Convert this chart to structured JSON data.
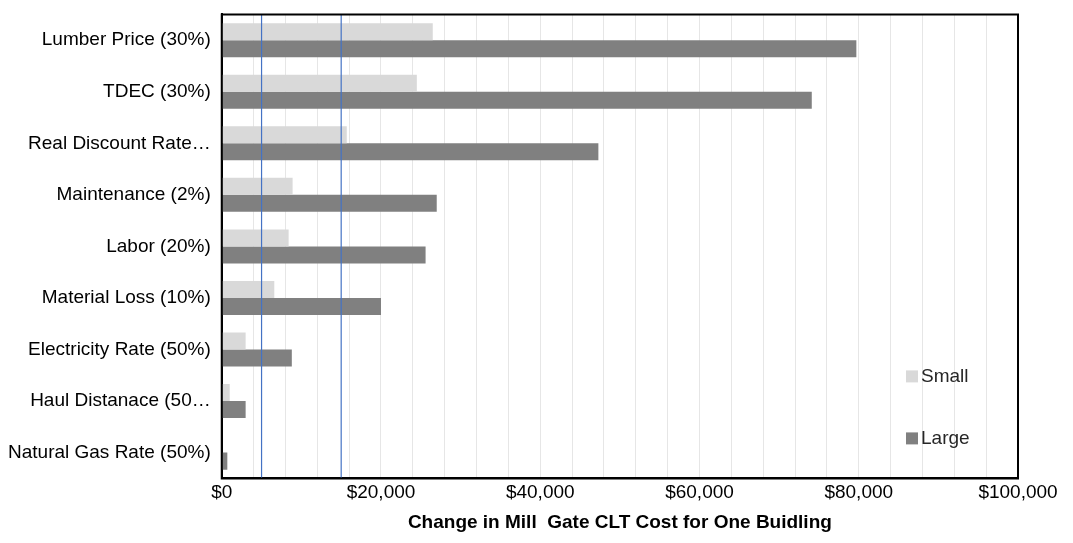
{
  "chart_data": {
    "type": "bar",
    "orientation": "horizontal",
    "xlabel": "Change in Mill  Gate CLT Cost for One Buidling",
    "categories": [
      "Lumber Price (30%)",
      "TDEC (30%)",
      "Real Discount Rate…",
      "Maintenance (2%)",
      "Labor (20%)",
      "Material Loss (10%)",
      "Electricity Rate (50%)",
      "Haul Distanace (50…",
      "Natural Gas Rate (50%)"
    ],
    "series": [
      {
        "name": "Small",
        "color": "#d9d9d9",
        "values": [
          26500,
          24500,
          15700,
          8900,
          8400,
          6600,
          3000,
          1000,
          0
        ]
      },
      {
        "name": "Large",
        "color": "#808080",
        "values": [
          79700,
          74100,
          47300,
          27000,
          25600,
          20000,
          8800,
          3000,
          700
        ]
      }
    ],
    "xlim": [
      0,
      100000
    ],
    "xticks": [
      {
        "value": 0,
        "label": "$0"
      },
      {
        "value": 4000,
        "label": null
      },
      {
        "value": 8000,
        "label": null
      },
      {
        "value": 12000,
        "label": null
      },
      {
        "value": 16000,
        "label": null
      },
      {
        "value": 20000,
        "label": "$20,000"
      },
      {
        "value": 24000,
        "label": null
      },
      {
        "value": 28000,
        "label": null
      },
      {
        "value": 32000,
        "label": null
      },
      {
        "value": 36000,
        "label": null
      },
      {
        "value": 40000,
        "label": "$40,000"
      },
      {
        "value": 44000,
        "label": null
      },
      {
        "value": 48000,
        "label": null
      },
      {
        "value": 52000,
        "label": null
      },
      {
        "value": 56000,
        "label": null
      },
      {
        "value": 60000,
        "label": "$60,000"
      },
      {
        "value": 64000,
        "label": null
      },
      {
        "value": 68000,
        "label": null
      },
      {
        "value": 72000,
        "label": null
      },
      {
        "value": 76000,
        "label": null
      },
      {
        "value": 80000,
        "label": "$80,000"
      },
      {
        "value": 84000,
        "label": null
      },
      {
        "value": 88000,
        "label": null
      },
      {
        "value": 92000,
        "label": null
      },
      {
        "value": 96000,
        "label": null
      },
      {
        "value": 100000,
        "label": "$100,000"
      }
    ],
    "ref_lines": [
      {
        "axis": "x",
        "value": 5000,
        "color": "#4472c4"
      },
      {
        "axis": "x",
        "value": 15000,
        "color": "#4472c4"
      }
    ],
    "grid": "x",
    "legend": "bottom right"
  }
}
